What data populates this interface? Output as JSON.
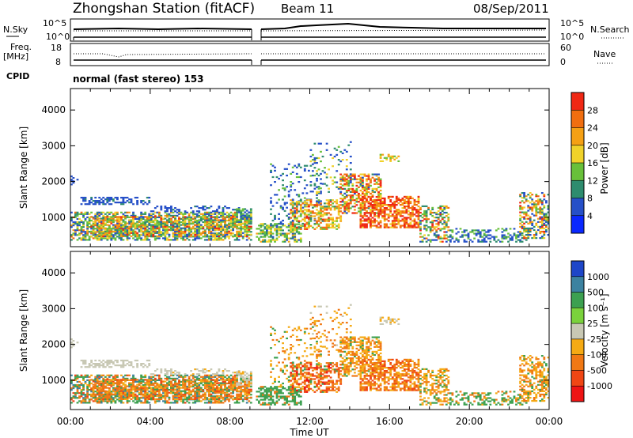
{
  "header": {
    "station": "Zhongshan Station (fitACF)",
    "beam": "Beam 11",
    "date": "08/Sep/2011"
  },
  "strip_panels": {
    "nsky": {
      "label": "N.Sky",
      "ticks": [
        "10^5",
        "10^0"
      ]
    },
    "nsearch": {
      "label": "N.Search",
      "ticks": [
        "10^5",
        "10^0"
      ]
    },
    "freq": {
      "label_line1": "Freq.",
      "label_line2": "[MHz]",
      "ticks": [
        "18",
        "8"
      ]
    },
    "nave": {
      "label": "Nave",
      "ticks": [
        "60",
        "0"
      ]
    },
    "cpid": {
      "label": "CPID",
      "text": "normal (fast stereo) 153"
    }
  },
  "chart_data": [
    {
      "type": "heatmap",
      "name": "power",
      "ylabel": "Slant Range [km]",
      "xlabel": "Time UT",
      "x_ticks": [
        "00:00",
        "04:00",
        "08:00",
        "12:00",
        "16:00",
        "20:00",
        "00:00"
      ],
      "x_range_hours": [
        0,
        24
      ],
      "y_ticks": [
        1000,
        2000,
        3000,
        4000
      ],
      "y_range_km": [
        180,
        4600
      ],
      "colorbar": {
        "label": "Power [dB]",
        "tick_labels": [
          "28",
          "24",
          "20",
          "16",
          "12",
          "8",
          "4"
        ],
        "tick_values": [
          28,
          24,
          20,
          16,
          12,
          8,
          4
        ],
        "range": [
          0,
          32
        ],
        "colors": [
          "#0a28ff",
          "#2650c8",
          "#2e8c6e",
          "#68c03a",
          "#f0d22a",
          "#f5a014",
          "#f06e10",
          "#f02814"
        ]
      }
    },
    {
      "type": "heatmap",
      "name": "velocity",
      "ylabel": "Slant Range [km]",
      "xlabel": "Time UT",
      "x_ticks": [
        "00:00",
        "04:00",
        "08:00",
        "12:00",
        "16:00",
        "20:00",
        "00:00"
      ],
      "x_range_hours": [
        0,
        24
      ],
      "y_ticks": [
        1000,
        2000,
        3000,
        4000
      ],
      "y_range_km": [
        180,
        4600
      ],
      "colorbar": {
        "label": "Velocity [m s⁻¹]",
        "tick_labels": [
          "1000",
          "500",
          "100",
          "25",
          "-25",
          "-100",
          "-500",
          "-1000"
        ],
        "colors": [
          "#1e46c8",
          "#3c82a0",
          "#3ca050",
          "#7ad23c",
          "#c8c8b4",
          "#f5aa14",
          "#f07814",
          "#f04614",
          "#ee1414"
        ]
      }
    }
  ]
}
